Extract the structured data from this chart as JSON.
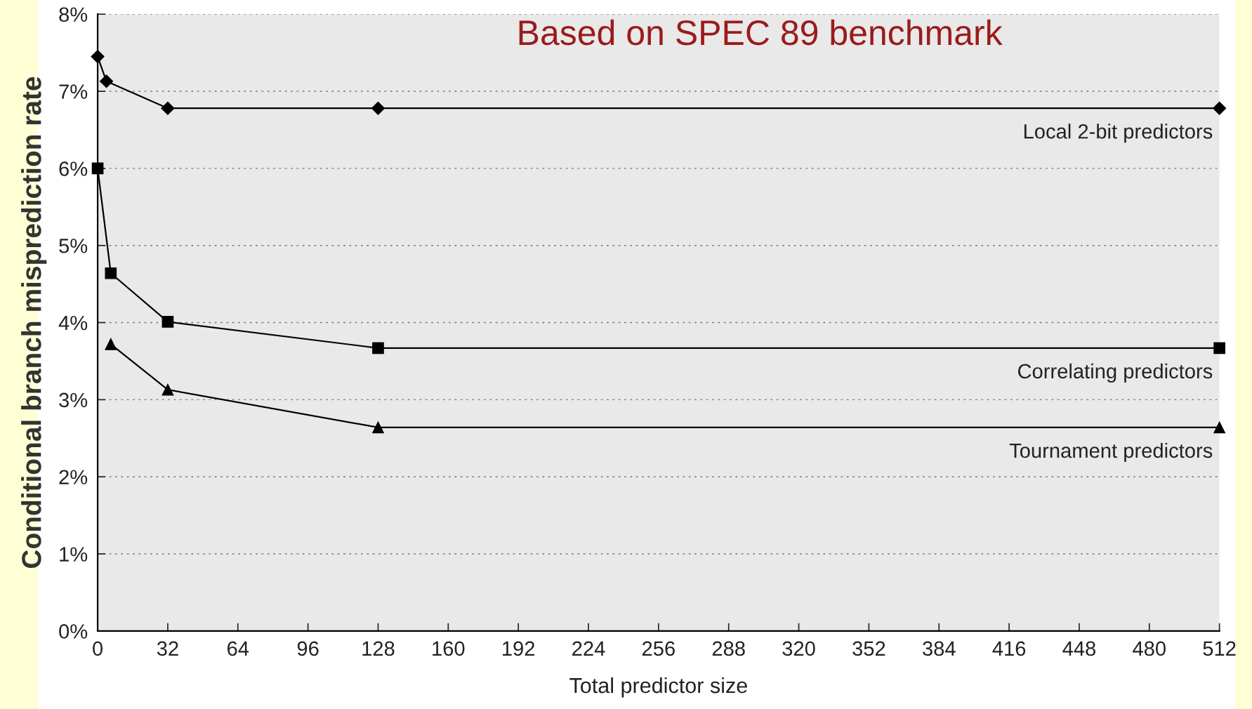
{
  "chart_data": {
    "type": "line",
    "xlabel": "Total predictor size",
    "ylabel": "Conditional branch misprediction rate",
    "annotations": [
      "Based on SPEC 89 benchmark"
    ],
    "series": [
      {
        "name": "Local 2-bit predictors",
        "color": "#000000",
        "marker": "diamond",
        "x": [
          0,
          4,
          32,
          128,
          512
        ],
        "values": [
          7.45,
          7.13,
          6.78,
          6.78,
          6.78
        ]
      },
      {
        "name": "Correlating predictors",
        "color": "#000000",
        "marker": "square",
        "x": [
          0,
          6,
          32,
          128,
          512
        ],
        "values": [
          6.0,
          4.64,
          4.01,
          3.67,
          3.67
        ]
      },
      {
        "name": "Tournament predictors",
        "color": "#000000",
        "marker": "triangle",
        "x": [
          6,
          32,
          128,
          512
        ],
        "values": [
          3.72,
          3.13,
          2.64,
          2.64
        ]
      }
    ],
    "xlim": [
      0,
      512
    ],
    "xticks": [
      0,
      32,
      64,
      96,
      128,
      160,
      192,
      224,
      256,
      288,
      320,
      352,
      384,
      416,
      448,
      480,
      512
    ],
    "ylim": [
      0,
      8
    ],
    "yticks": [
      {
        "value": 0,
        "label": "0%"
      },
      {
        "value": 1,
        "label": "1%"
      },
      {
        "value": 2,
        "label": "2%"
      },
      {
        "value": 3,
        "label": "3%"
      },
      {
        "value": 4,
        "label": "4%"
      },
      {
        "value": 5,
        "label": "5%"
      },
      {
        "value": 6,
        "label": "6%"
      },
      {
        "value": 7,
        "label": "7%"
      },
      {
        "value": 8,
        "label": "8%"
      }
    ],
    "grid": "y",
    "line_style": "solid",
    "legend": false
  }
}
